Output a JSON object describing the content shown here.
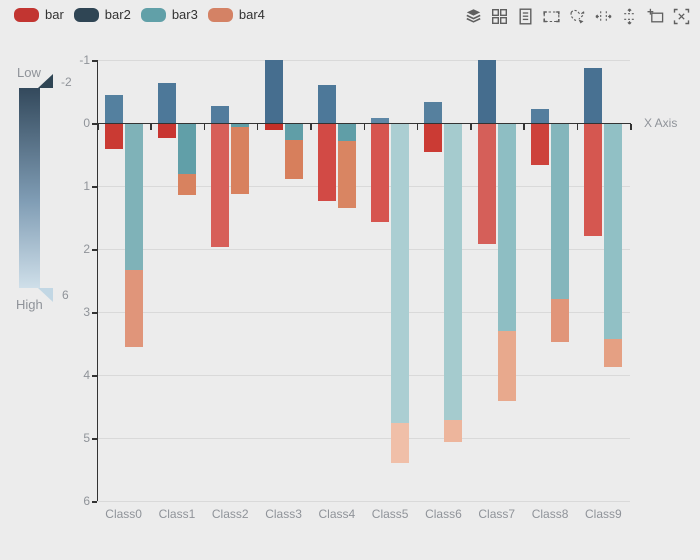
{
  "page": {
    "background": "#ececec"
  },
  "legend": {
    "items": [
      {
        "label": "bar",
        "color": "#c23531"
      },
      {
        "label": "bar2",
        "color": "#2f4554"
      },
      {
        "label": "bar3",
        "color": "#61a0a8"
      },
      {
        "label": "bar4",
        "color": "#d48265"
      }
    ]
  },
  "toolbox": {
    "icons": [
      "stack-icon",
      "tiled-icon",
      "data-view-icon",
      "zoom-select-icon",
      "brush-polygon-icon",
      "brush-line-x-icon",
      "brush-line-y-icon",
      "brush-keep-icon",
      "brush-clear-icon"
    ]
  },
  "visual_map": {
    "low_label": "Low",
    "high_label": "High",
    "top_handle_value": "-2",
    "bottom_handle_value": "6",
    "gradient_top_color": "#2f4554",
    "gradient_bottom_color": "#cfdfe9"
  },
  "chart_data": {
    "type": "bar",
    "stacked": true,
    "y_inverted": true,
    "title": "",
    "xlabel": "X Axis",
    "ylabel": "",
    "ylim": [
      -1,
      6
    ],
    "y_ticks": [
      "-1",
      "0",
      "1",
      "2",
      "3",
      "4",
      "5",
      "6"
    ],
    "grid": true,
    "categories": [
      "Class0",
      "Class1",
      "Class2",
      "Class3",
      "Class4",
      "Class5",
      "Class6",
      "Class7",
      "Class8",
      "Class9"
    ],
    "series": [
      {
        "name": "bar",
        "stack": "one",
        "base_color": "#c23531",
        "values": [
          0.4,
          0.23,
          1.95,
          0.09,
          1.22,
          1.55,
          0.44,
          1.9,
          0.65,
          1.78
        ],
        "colors": [
          "#ca3a33",
          "#c83531",
          "#d75f59",
          "#c53029",
          "#d24a45",
          "#d6554f",
          "#cb3b34",
          "#d55f59",
          "#cd423b",
          "#d55750"
        ]
      },
      {
        "name": "bar2",
        "stack": "one",
        "base_color": "#2f4554",
        "values": [
          -0.45,
          -0.63,
          -0.27,
          -1.0,
          -0.6,
          -0.08,
          -0.34,
          -1.0,
          -0.22,
          -0.88
        ],
        "colors": [
          "#54809f",
          "#4d7899",
          "#527c9d",
          "#466e8f",
          "#4d7899",
          "#5e87a6",
          "#56809e",
          "#456d8e",
          "#547e9e",
          "#487192"
        ]
      },
      {
        "name": "bar3",
        "stack": "two",
        "base_color": "#61a0a8",
        "values": [
          2.31,
          0.8,
          0.05,
          0.26,
          0.27,
          4.75,
          4.7,
          3.29,
          2.77,
          3.42
        ],
        "colors": [
          "#7fb2b8",
          "#619fa8",
          "#5f9ea6",
          "#609ea7",
          "#609ea7",
          "#abced2",
          "#a5cbce",
          "#8ebec3",
          "#84b6bc",
          "#91c0c5"
        ]
      },
      {
        "name": "bar4",
        "stack": "two",
        "base_color": "#d48265",
        "values": [
          1.23,
          0.32,
          1.06,
          0.62,
          1.07,
          0.63,
          0.34,
          1.1,
          0.69,
          0.44
        ],
        "colors": [
          "#e0957a",
          "#d8825f",
          "#d8815e",
          "#d77f5c",
          "#d98562",
          "#f0bfa8",
          "#edb59c",
          "#e8a98d",
          "#e19579",
          "#e5a083"
        ]
      }
    ]
  }
}
